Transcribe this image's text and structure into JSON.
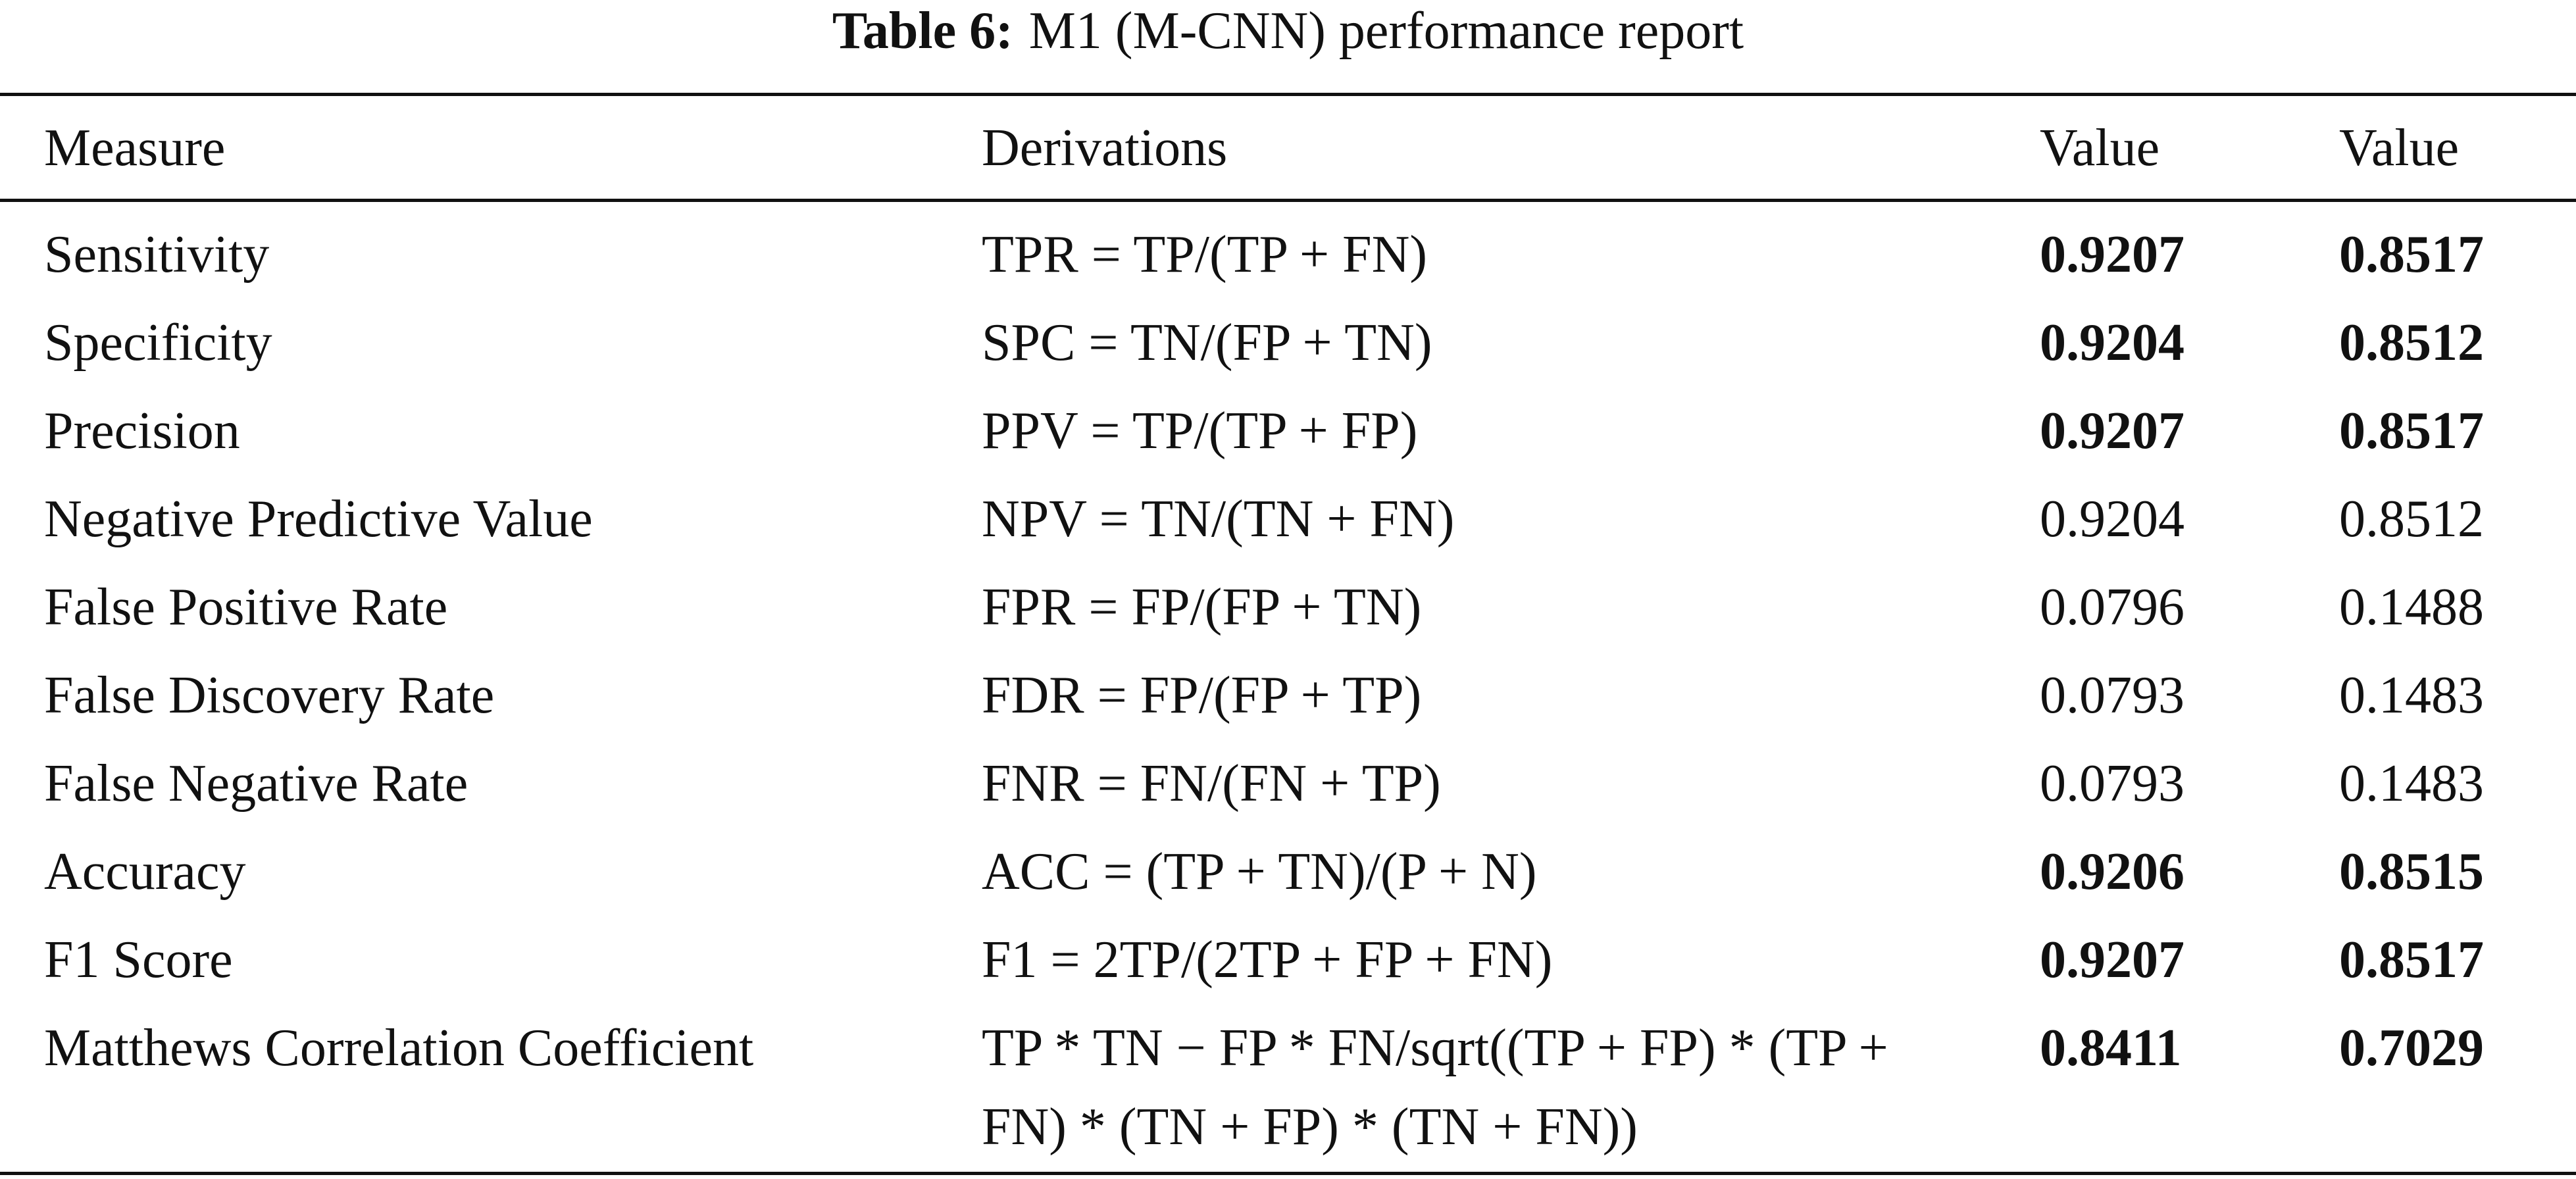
{
  "caption": {
    "label": "Table 6:",
    "title": "M1 (M-CNN) performance report"
  },
  "table": {
    "header": [
      "Measure",
      "Derivations",
      "Value",
      "Value"
    ],
    "rows": [
      {
        "measure": "Sensitivity",
        "derivation": "TPR = TP/(TP + FN)",
        "values": [
          0.9207,
          0.8517
        ],
        "bold": true
      },
      {
        "measure": "Specificity",
        "derivation": "SPC = TN/(FP + TN)",
        "values": [
          0.9204,
          0.8512
        ],
        "bold": true
      },
      {
        "measure": "Precision",
        "derivation": "PPV = TP/(TP + FP)",
        "values": [
          0.9207,
          0.8517
        ],
        "bold": true
      },
      {
        "measure": "Negative Predictive Value",
        "derivation": "NPV = TN/(TN + FN)",
        "values": [
          0.9204,
          0.8512
        ],
        "bold": false
      },
      {
        "measure": "False Positive Rate",
        "derivation": "FPR = FP/(FP + TN)",
        "values": [
          0.0796,
          0.1488
        ],
        "bold": false
      },
      {
        "measure": "False Discovery Rate",
        "derivation": "FDR = FP/(FP + TP)",
        "values": [
          0.0793,
          0.1483
        ],
        "bold": false
      },
      {
        "measure": "False Negative Rate",
        "derivation": "FNR = FN/(FN + TP)",
        "values": [
          0.0793,
          0.1483
        ],
        "bold": false
      },
      {
        "measure": "Accuracy",
        "derivation": "ACC = (TP + TN)/(P + N)",
        "values": [
          0.9206,
          0.8515
        ],
        "bold": true
      },
      {
        "measure": "F1 Score",
        "derivation": "F1 = 2TP/(2TP + FP + FN)",
        "values": [
          0.9207,
          0.8517
        ],
        "bold": true
      },
      {
        "measure": "Matthews Correlation Coefficient",
        "derivation": "TP * TN − FP * FN/sqrt((TP + FP) * (TP + FN) * (TN + FP) * (TN + FN))",
        "values": [
          0.8411,
          0.7029
        ],
        "bold": true
      }
    ]
  }
}
